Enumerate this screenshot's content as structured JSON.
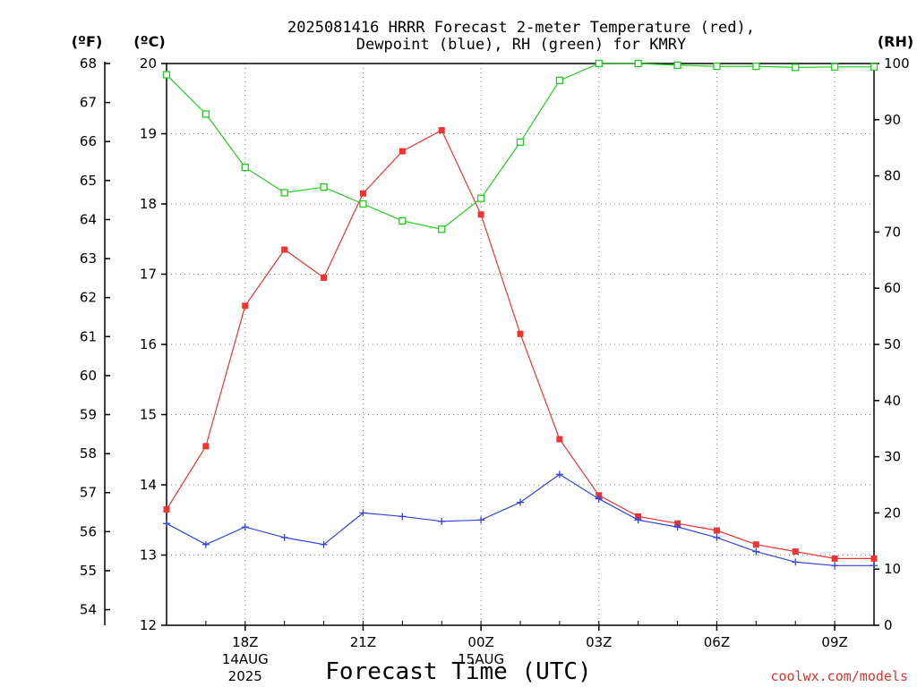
{
  "chart_data": {
    "type": "line",
    "title_line1": "2025081416 HRRR Forecast 2-meter Temperature (red),",
    "title_line2": "Dewpoint (blue), RH (green) for KMRY",
    "xlabel": "Forecast Time (UTC)",
    "credit": "coolwx.com/models",
    "left_outer_axis": {
      "unit": "(ºF)",
      "ticks": [
        54,
        55,
        56,
        57,
        58,
        59,
        60,
        61,
        62,
        63,
        64,
        65,
        66,
        67,
        68
      ]
    },
    "left_inner_axis": {
      "unit": "(ºC)",
      "ylim": [
        12,
        20
      ],
      "ticks": [
        12,
        13,
        14,
        15,
        16,
        17,
        18,
        19,
        20
      ]
    },
    "right_axis": {
      "unit": "(RH)",
      "ylim": [
        0,
        100
      ],
      "ticks": [
        0,
        10,
        20,
        30,
        40,
        50,
        60,
        70,
        80,
        90,
        100
      ]
    },
    "x_hours_range": [
      16,
      34
    ],
    "x_ticks": [
      {
        "hour": 18,
        "label": "18Z",
        "sub1": "14AUG",
        "sub2": "2025"
      },
      {
        "hour": 21,
        "label": "21Z",
        "sub1": "",
        "sub2": ""
      },
      {
        "hour": 24,
        "label": "00Z",
        "sub1": "15AUG",
        "sub2": ""
      },
      {
        "hour": 27,
        "label": "03Z",
        "sub1": "",
        "sub2": ""
      },
      {
        "hour": 30,
        "label": "06Z",
        "sub1": "",
        "sub2": ""
      },
      {
        "hour": 33,
        "label": "09Z",
        "sub1": "",
        "sub2": ""
      }
    ],
    "x": [
      16,
      17,
      18,
      19,
      20,
      21,
      22,
      23,
      24,
      25,
      26,
      27,
      28,
      29,
      30,
      31,
      32,
      33,
      34
    ],
    "series": [
      {
        "name": "Temperature",
        "axis": "celsius",
        "color": "#ee3333",
        "marker": "filled-square",
        "values": [
          13.65,
          14.55,
          16.55,
          17.35,
          16.95,
          18.15,
          18.75,
          19.05,
          17.85,
          16.15,
          14.65,
          13.85,
          13.55,
          13.45,
          13.35,
          13.15,
          13.05,
          12.95,
          12.95
        ]
      },
      {
        "name": "Dewpoint",
        "axis": "celsius",
        "color": "#3344dd",
        "marker": "plus",
        "values": [
          13.45,
          13.15,
          13.4,
          13.25,
          13.15,
          13.6,
          13.55,
          13.48,
          13.5,
          13.75,
          14.15,
          13.8,
          13.5,
          13.4,
          13.25,
          13.05,
          12.9,
          12.85,
          12.85
        ]
      },
      {
        "name": "RH",
        "axis": "rh",
        "color": "#22cc22",
        "marker": "open-square",
        "values": [
          98,
          91,
          81.5,
          77,
          78,
          75,
          72,
          70.5,
          76,
          86,
          97,
          100,
          100,
          99.7,
          99.5,
          99.5,
          99.3,
          99.4,
          99.4
        ]
      }
    ]
  }
}
